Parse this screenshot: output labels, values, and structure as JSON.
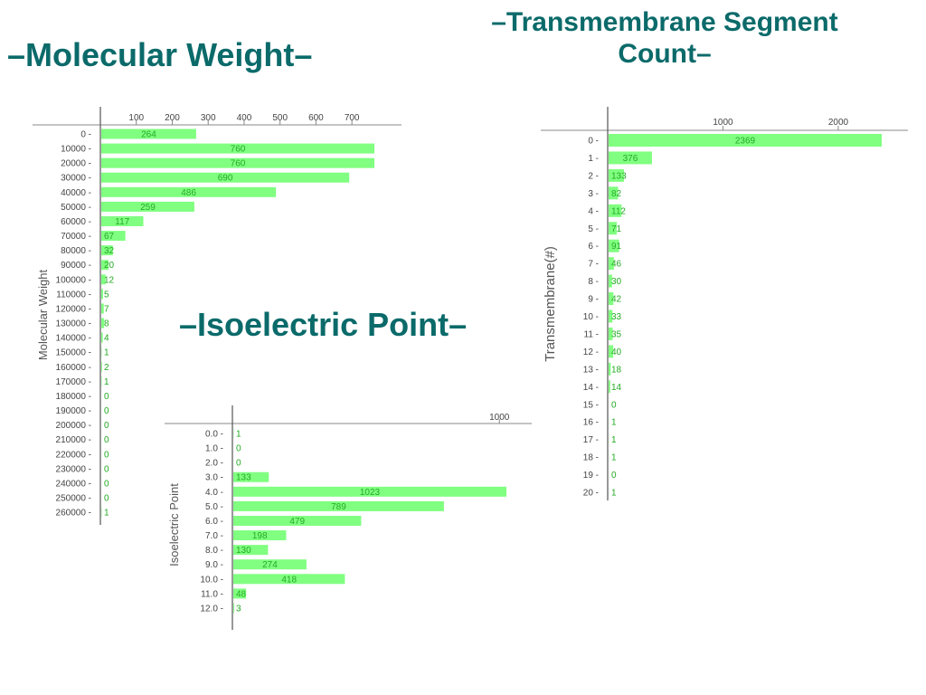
{
  "slide": {
    "titles": {
      "molecular_weight": "–Molecular Weight–",
      "transmembrane": "–Transmembrane Segment Count–",
      "isoelectric": "–Isoelectric Point–"
    },
    "title_color": "#0b6a6a"
  },
  "chart_data": [
    {
      "id": "molecular-weight",
      "type": "bar",
      "orientation": "horizontal",
      "title": "",
      "ylabel": "Molecular Weight",
      "xlabel": "",
      "bar_color": "#80ff80",
      "label_color": "#22aa22",
      "xlim": [
        0,
        760
      ],
      "xticks": [
        100,
        200,
        300,
        400,
        500,
        600,
        700
      ],
      "categories": [
        "0 -",
        "10000 -",
        "20000 -",
        "30000 -",
        "40000 -",
        "50000 -",
        "60000 -",
        "70000 -",
        "80000 -",
        "90000 -",
        "100000 -",
        "110000 -",
        "120000 -",
        "130000 -",
        "140000 -",
        "150000 -",
        "160000 -",
        "170000 -",
        "180000 -",
        "190000 -",
        "200000 -",
        "210000 -",
        "220000 -",
        "230000 -",
        "240000 -",
        "250000 -",
        "260000 -"
      ],
      "values": [
        264,
        760,
        760,
        690,
        486,
        259,
        117,
        67,
        32,
        20,
        12,
        5,
        7,
        8,
        4,
        1,
        2,
        1,
        0,
        0,
        0,
        0,
        0,
        0,
        0,
        0,
        1
      ],
      "grid": false
    },
    {
      "id": "transmembrane",
      "type": "bar",
      "orientation": "horizontal",
      "title": "",
      "ylabel": "Transmembrane(#)",
      "xlabel": "",
      "bar_color": "#80ff80",
      "label_color": "#22aa22",
      "xlim": [
        0,
        2369
      ],
      "xticks": [
        1000,
        2000
      ],
      "categories": [
        "0 -",
        "1 -",
        "2 -",
        "3 -",
        "4 -",
        "5 -",
        "6 -",
        "7 -",
        "8 -",
        "9 -",
        "10 -",
        "11 -",
        "12 -",
        "13 -",
        "14 -",
        "15 -",
        "16 -",
        "17 -",
        "18 -",
        "19 -",
        "20 -"
      ],
      "values": [
        2369,
        376,
        133,
        82,
        112,
        71,
        91,
        46,
        30,
        42,
        33,
        35,
        40,
        18,
        14,
        0,
        1,
        1,
        1,
        0,
        1
      ],
      "grid": false
    },
    {
      "id": "isoelectric",
      "type": "bar",
      "orientation": "horizontal",
      "title": "",
      "ylabel": "Isoelectric Point",
      "xlabel": "",
      "bar_color": "#80ff80",
      "label_color": "#22aa22",
      "xlim": [
        0,
        1023
      ],
      "xticks": [
        1000
      ],
      "categories": [
        "0.0 -",
        "1.0 -",
        "2.0 -",
        "3.0 -",
        "4.0 -",
        "5.0 -",
        "6.0 -",
        "7.0 -",
        "8.0 -",
        "9.0 -",
        "10.0 -",
        "11.0 -",
        "12.0 -"
      ],
      "values": [
        1,
        0,
        0,
        133,
        1023,
        789,
        479,
        198,
        130,
        274,
        418,
        48,
        3
      ],
      "grid": false
    }
  ]
}
